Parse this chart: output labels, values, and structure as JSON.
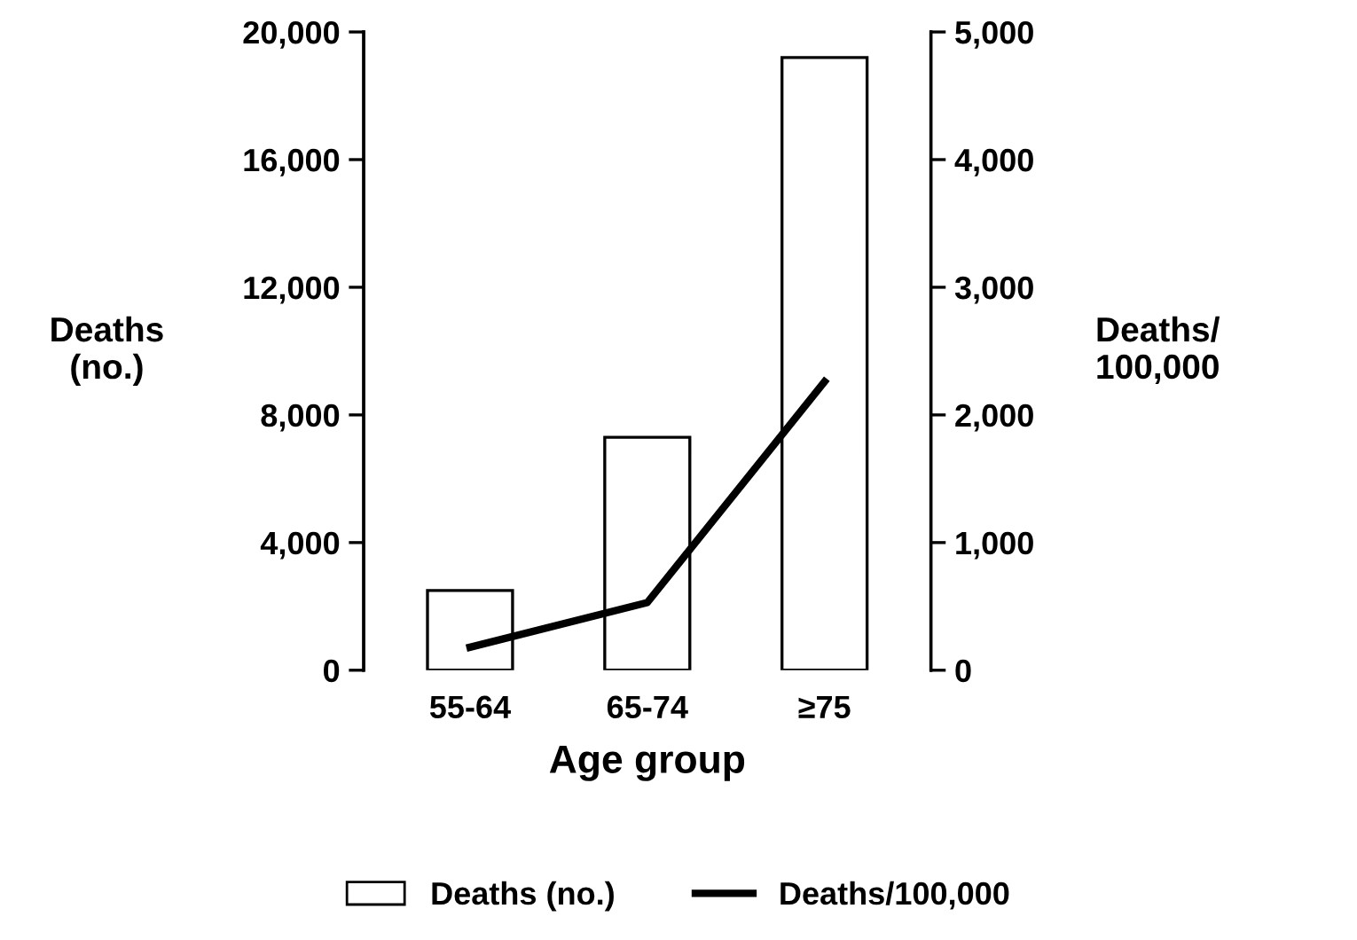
{
  "chart_data": {
    "type": "bar",
    "xlabel": "Age group",
    "ylabel": "Deaths\n(no.)",
    "y2label": "Deaths/\n100,000",
    "categories": [
      "55-64",
      "65-74",
      "≥75"
    ],
    "series": [
      {
        "name": "Deaths (no.)",
        "color": "#ffffff",
        "values": [
          2500,
          7300,
          19200
        ]
      },
      {
        "name": "Deaths/100,000",
        "type": "line",
        "axis": "y2",
        "color": "#000000",
        "values": [
          180,
          530,
          2260
        ]
      }
    ],
    "ylim": [
      0,
      20000
    ],
    "yticks": [
      {
        "value": 0,
        "label": "0"
      },
      {
        "value": 4000,
        "label": "4,000"
      },
      {
        "value": 8000,
        "label": "8,000"
      },
      {
        "value": 12000,
        "label": "12,000"
      },
      {
        "value": 16000,
        "label": "16,000"
      },
      {
        "value": 20000,
        "label": "20,000"
      }
    ],
    "y2lim": [
      0,
      5000
    ],
    "y2ticks": [
      {
        "value": 0,
        "label": "0"
      },
      {
        "value": 1000,
        "label": "1,000"
      },
      {
        "value": 2000,
        "label": "2,000"
      },
      {
        "value": 3000,
        "label": "3,000"
      },
      {
        "value": 4000,
        "label": "4,000"
      },
      {
        "value": 5000,
        "label": "5,000"
      }
    ],
    "grid": false,
    "legend": "bottom",
    "marker": "none",
    "line_style": "solid"
  }
}
